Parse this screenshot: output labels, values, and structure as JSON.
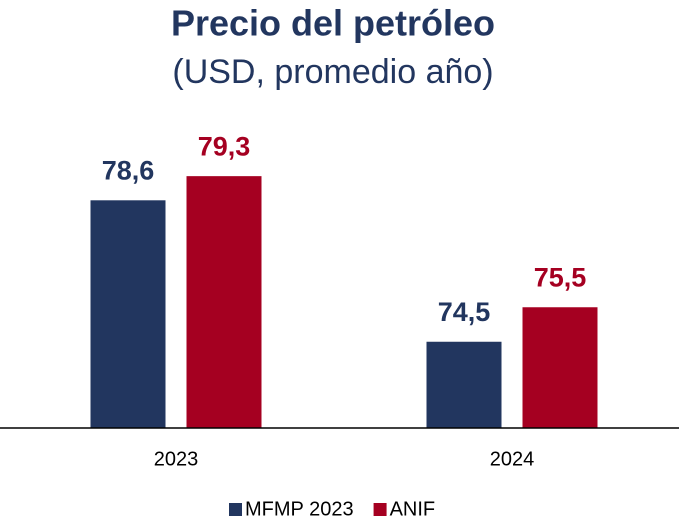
{
  "chart_data": {
    "type": "bar",
    "title": "Precio del petróleo",
    "subtitle": "(USD, promedio año)",
    "categories": [
      "2023",
      "2024"
    ],
    "series": [
      {
        "name": "MFMP 2023",
        "color": "#22365f",
        "values": [
          78.6,
          74.5
        ],
        "value_labels": [
          "78,6",
          "74,5"
        ]
      },
      {
        "name": "ANIF",
        "color": "#a50021",
        "values": [
          79.3,
          75.5
        ],
        "value_labels": [
          "79,3",
          "75,5"
        ]
      }
    ],
    "ylim": [
      72,
      80
    ],
    "legend": "bottom"
  }
}
